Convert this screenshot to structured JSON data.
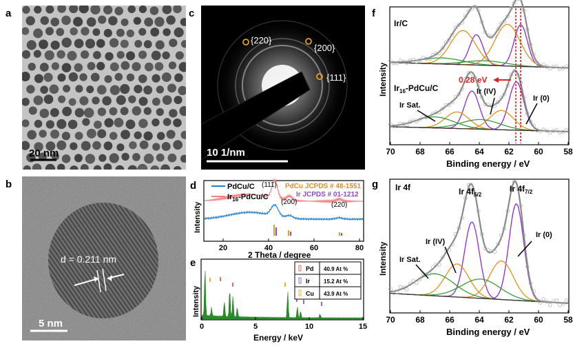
{
  "panels": {
    "a": {
      "letter": "a",
      "scale": "20 nm"
    },
    "b": {
      "letter": "b",
      "scale": "5 nm",
      "d_spacing": "d = 0.211 nm"
    },
    "c": {
      "letter": "c",
      "scale": "10 1/nm",
      "rings": [
        "{220}",
        "{200}",
        "{111}"
      ]
    },
    "d": {
      "letter": "d",
      "legend": [
        "PdCu/C",
        "Ir16-PdCu/C"
      ],
      "legend_main": "Ir",
      "legend_sub": "16",
      "legend_rest": "-PdCu/C",
      "ref_pdcu": "PdCu JCPDS # 48-1551",
      "ref_ir": "Ir JCPDS # 01-1212",
      "peaks": [
        "(111)",
        "(200)",
        "(220)"
      ],
      "ylabel": "Intensity",
      "xlabel": "2 Theta / degree",
      "xticks": [
        "20",
        "40",
        "60",
        "80"
      ]
    },
    "e": {
      "letter": "e",
      "ylabel": "Intensity",
      "xlabel": "Energy / keV",
      "xticks": [
        "0",
        "5",
        "10",
        "15"
      ],
      "table": [
        {
          "el": "Pd",
          "val": "40.9 At %"
        },
        {
          "el": "Ir",
          "val": "15.2 At %"
        },
        {
          "el": "Cu",
          "val": "43.9 At %"
        }
      ]
    },
    "f": {
      "letter": "f",
      "top_label": "Ir/C",
      "bottom_main": "Ir",
      "bottom_sub": "16",
      "bottom_rest": "-PdCu/C",
      "shift": "0.28 eV",
      "sat": "Ir Sat.",
      "ir4": "Ir (IV)",
      "ir0": "Ir (0)",
      "ylabel": "Intensity",
      "xlabel": "Binding energy / eV",
      "xticks": [
        "70",
        "68",
        "66",
        "64",
        "62",
        "60",
        "58"
      ]
    },
    "g": {
      "letter": "g",
      "title": "Ir 4f",
      "peak1_main": "Ir 4f",
      "peak1_sub": "5/2",
      "peak2_main": "Ir 4f",
      "peak2_sub": "7/2",
      "sat": "Ir Sat.",
      "ir4": "Ir (IV)",
      "ir0": "Ir (0)",
      "ylabel": "Intensity",
      "xlabel": "Binding energy / eV",
      "xticks": [
        "70",
        "68",
        "66",
        "64",
        "62",
        "60",
        "58"
      ]
    }
  },
  "colors": {
    "pdcu": "#1f7fd6",
    "ir16": "#f08080",
    "pd": "#e07070",
    "ir": "#8a6ad0",
    "cu": "#f0b030",
    "eds": "#2a8a2a",
    "shift": "#e02020"
  }
}
